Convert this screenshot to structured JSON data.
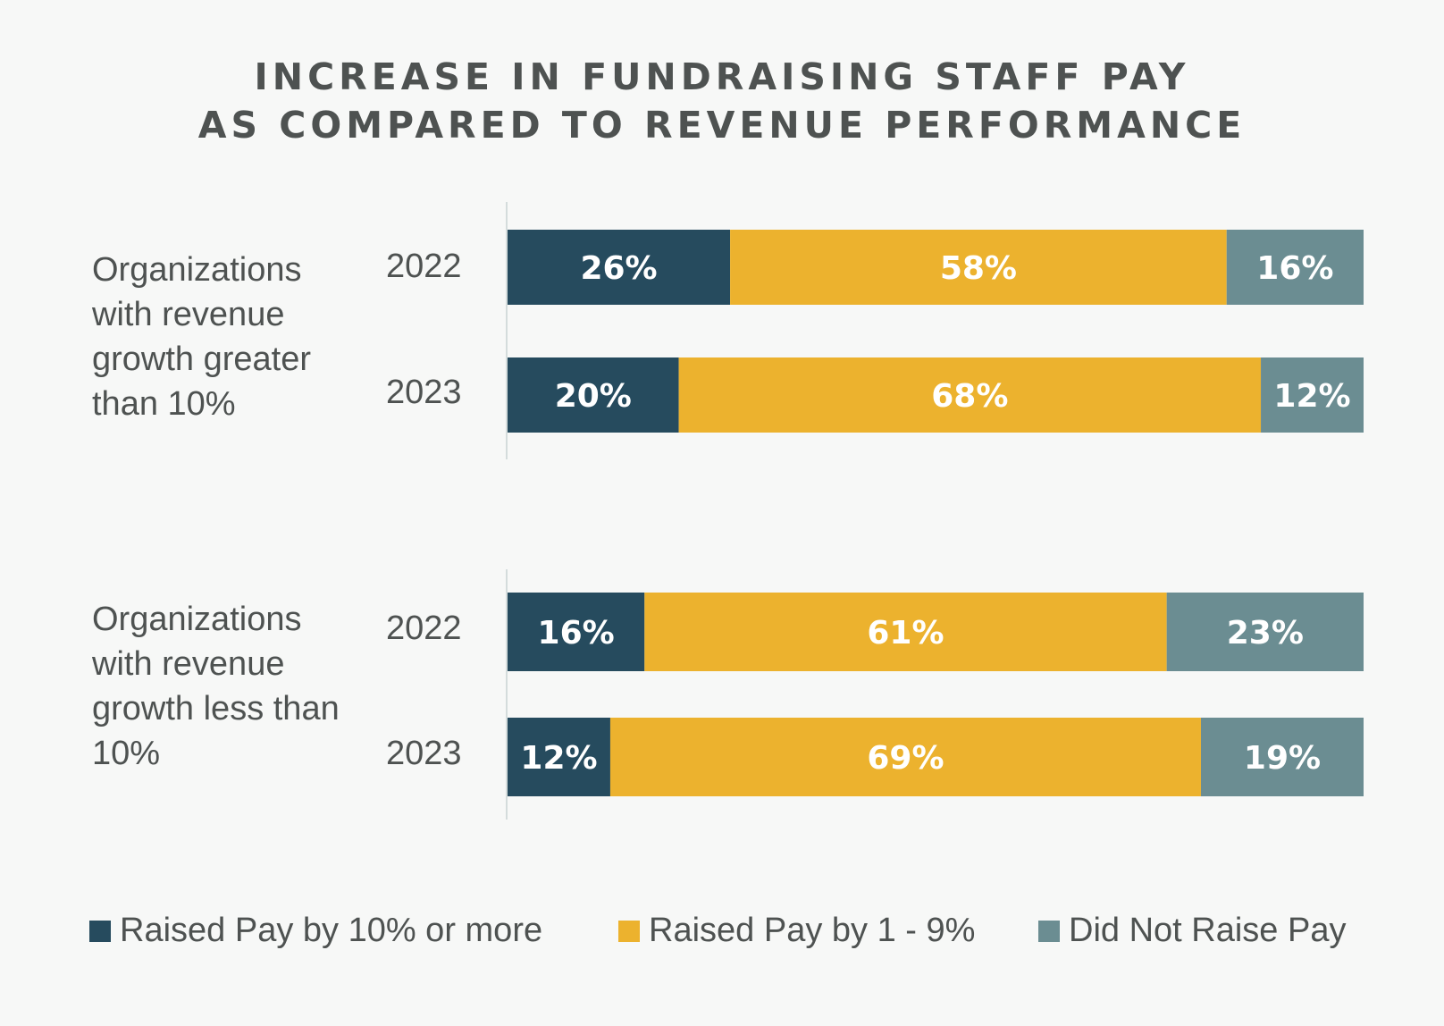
{
  "chart_data": {
    "type": "bar",
    "orientation": "horizontal",
    "stacked": true,
    "title_lines": [
      "INCREASE IN FUNDRAISING STAFF PAY",
      "AS COMPARED TO REVENUE PERFORMANCE"
    ],
    "groups": [
      {
        "label": "Organizations with revenue growth greater than 10%",
        "rows": [
          {
            "year": "2022",
            "values": [
              26,
              58,
              16
            ]
          },
          {
            "year": "2023",
            "values": [
              20,
              68,
              12
            ]
          }
        ]
      },
      {
        "label": "Organizations with revenue growth less than 10%",
        "rows": [
          {
            "year": "2022",
            "values": [
              16,
              61,
              23
            ]
          },
          {
            "year": "2023",
            "values": [
              12,
              69,
              19
            ]
          }
        ]
      }
    ],
    "series": [
      {
        "name": "Raised Pay by 10% or more",
        "color": "#264b5e"
      },
      {
        "name": "Raised Pay by 1 - 9%",
        "color": "#ecb22e"
      },
      {
        "name": "Did Not Raise Pay",
        "color": "#6b8d92"
      }
    ],
    "value_suffix": "%",
    "xlim": [
      0,
      100
    ],
    "legend_position": "bottom"
  }
}
